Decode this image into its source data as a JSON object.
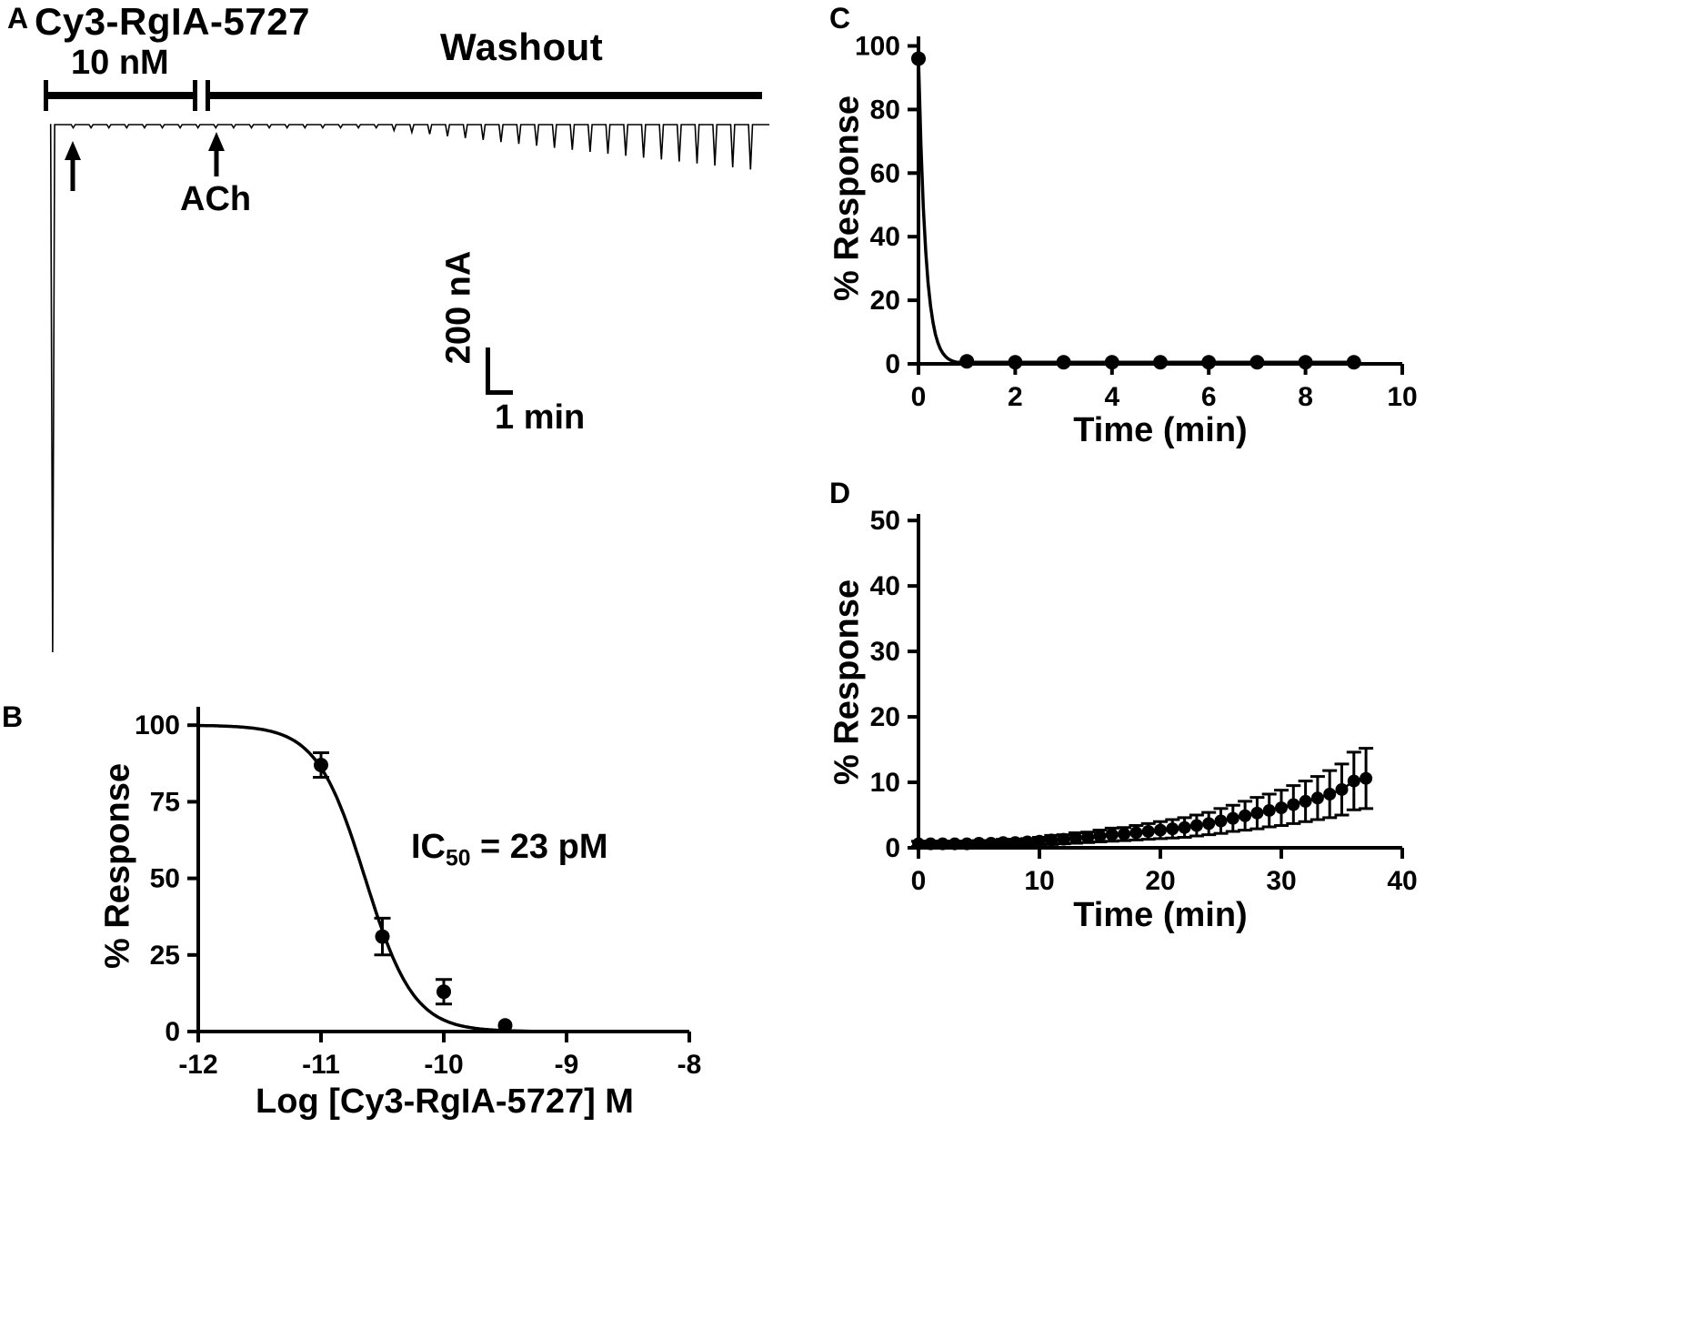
{
  "panelA": {
    "label": "A",
    "title": "Cy3-RgIA-5727",
    "dose": "10 nM",
    "washout": "Washout",
    "ach": "ACh",
    "scale_vertical": "200 nA",
    "scale_horizontal": "1 min"
  },
  "panelB": {
    "label": "B",
    "ylabel": "% Response",
    "xlabel": "Log [Cy3-RgIA-5727] M",
    "ic50_prefix": "IC",
    "ic50_sub": "50",
    "ic50_rest": " = 23 pM"
  },
  "panelC": {
    "label": "C",
    "ylabel": "% Response",
    "xlabel": "Time (min)"
  },
  "panelD": {
    "label": "D",
    "ylabel": "% Response",
    "xlabel": "Time (min)"
  },
  "chart_data": [
    {
      "id": "A",
      "dom_id": "svg-trace-A",
      "type": "trace",
      "title": "Oocyte current trace: Cy3-RgIA-5727 10 nM application then washout, ACh pulses ~1/min",
      "application_bar": "Cy3-RgIA-5727 10 nM",
      "washout_bar": "Washout",
      "scale": {
        "y": "200 nA",
        "x": "1 min"
      },
      "time_units": "min",
      "initial_spike": {
        "t": 0.15,
        "amp": 1.0
      },
      "spike_t": [
        1.3,
        2.3,
        3.3,
        4.3,
        5.3,
        6.3,
        7.3,
        8.3,
        9.3,
        10.3,
        11.3,
        12.3,
        13.3,
        14.3,
        15.3,
        16.3,
        17.3,
        18.3,
        19.3,
        20.3,
        21.3,
        22.3,
        23.3,
        24.3,
        25.3,
        26.3,
        27.3,
        28.3,
        29.3,
        30.3,
        31.3,
        32.3,
        33.3,
        34.3,
        35.3,
        36.3,
        37.3,
        38.3,
        39.3
      ],
      "spike_amp": [
        0.006,
        0.006,
        0.006,
        0.006,
        0.006,
        0.006,
        0.006,
        0.006,
        0.006,
        0.006,
        0.006,
        0.006,
        0.006,
        0.006,
        0.006,
        0.006,
        0.006,
        0.006,
        0.011,
        0.0145,
        0.018,
        0.022,
        0.0255,
        0.029,
        0.033,
        0.0365,
        0.04,
        0.044,
        0.0478,
        0.0515,
        0.055,
        0.059,
        0.0625,
        0.066,
        0.07,
        0.0737,
        0.0774,
        0.081,
        0.085
      ]
    },
    {
      "id": "B",
      "dom_id": "svg-chart-B",
      "type": "scatter",
      "title": "Concentration-response curve",
      "xlabel": "Log [Cy3-RgIA-5727] M",
      "ylabel": "% Response",
      "xlim": [
        -12,
        -8
      ],
      "ylim": [
        0,
        106
      ],
      "xticks": [
        -12,
        -11,
        -10,
        -9,
        -8
      ],
      "yticks": [
        0,
        25,
        50,
        75,
        100
      ],
      "marker_r": 8,
      "cap": 9,
      "ic50_pM": 23,
      "points": {
        "x": [
          -11,
          -10.5,
          -10,
          -9.5
        ],
        "y": [
          87,
          31,
          13,
          2
        ],
        "yerr": [
          4,
          6,
          4,
          0
        ]
      },
      "curve": {
        "fn": "sigmoid",
        "top": 100,
        "bottom": 0,
        "log_ic50": -10.64,
        "hill": 2.2,
        "range": [
          -12,
          -9.3
        ]
      }
    },
    {
      "id": "C",
      "dom_id": "svg-chart-C",
      "type": "scatter",
      "title": "Block onset time course",
      "xlabel": "Time (min)",
      "ylabel": "% Response",
      "xlim": [
        0,
        10
      ],
      "ylim": [
        0,
        103
      ],
      "xticks": [
        0,
        2,
        4,
        6,
        8,
        10
      ],
      "yticks": [
        0,
        20,
        40,
        60,
        80,
        100
      ],
      "marker_r": 8,
      "cap": 8,
      "points": {
        "x": [
          0,
          1,
          2,
          3,
          4,
          5,
          6,
          7,
          8,
          9
        ],
        "y": [
          96,
          0.8,
          0.5,
          0.5,
          0.5,
          0.5,
          0.5,
          0.5,
          0.5,
          0.5
        ],
        "yerr": [
          0,
          0,
          0,
          0,
          0,
          0,
          0,
          0,
          0,
          0
        ]
      },
      "curve": {
        "fn": "expdecay",
        "amp": 96,
        "tau": 0.15,
        "floor": 0.5,
        "range": [
          0,
          9
        ]
      }
    },
    {
      "id": "D",
      "dom_id": "svg-chart-D",
      "type": "scatter",
      "title": "Washout recovery time course",
      "xlabel": "Time (min)",
      "ylabel": "% Response",
      "xlim": [
        0,
        40
      ],
      "ylim": [
        0,
        51
      ],
      "xticks": [
        0,
        10,
        20,
        30,
        40
      ],
      "yticks": [
        0,
        10,
        20,
        30,
        40,
        50
      ],
      "marker_r": 7,
      "cap": 8,
      "connect": true,
      "points": {
        "x": [
          0,
          1,
          2,
          3,
          4,
          5,
          6,
          7,
          8,
          9,
          10,
          11,
          12,
          13,
          14,
          15,
          16,
          17,
          18,
          19,
          20,
          21,
          22,
          23,
          24,
          25,
          26,
          27,
          28,
          29,
          30,
          31,
          32,
          33,
          34,
          35,
          36,
          37
        ],
        "y": [
          0.6,
          0.6,
          0.6,
          0.6,
          0.6,
          0.7,
          0.7,
          0.8,
          0.8,
          0.9,
          1.0,
          1.2,
          1.3,
          1.5,
          1.6,
          1.8,
          2.0,
          2.1,
          2.3,
          2.5,
          2.7,
          2.9,
          3.1,
          3.4,
          3.7,
          4.1,
          4.5,
          4.9,
          5.3,
          5.7,
          6.1,
          6.6,
          7.1,
          7.6,
          8.2,
          8.9,
          10.2,
          10.6
        ],
        "yerr": [
          0.4,
          0.4,
          0.4,
          0.4,
          0.4,
          0.4,
          0.4,
          0.5,
          0.5,
          0.5,
          0.6,
          0.7,
          0.7,
          0.8,
          0.8,
          0.9,
          1.0,
          1.0,
          1.1,
          1.2,
          1.3,
          1.4,
          1.5,
          1.6,
          1.7,
          1.9,
          2.0,
          2.2,
          2.4,
          2.5,
          2.7,
          2.9,
          3.1,
          3.3,
          3.6,
          3.9,
          4.4,
          4.6
        ]
      }
    }
  ]
}
